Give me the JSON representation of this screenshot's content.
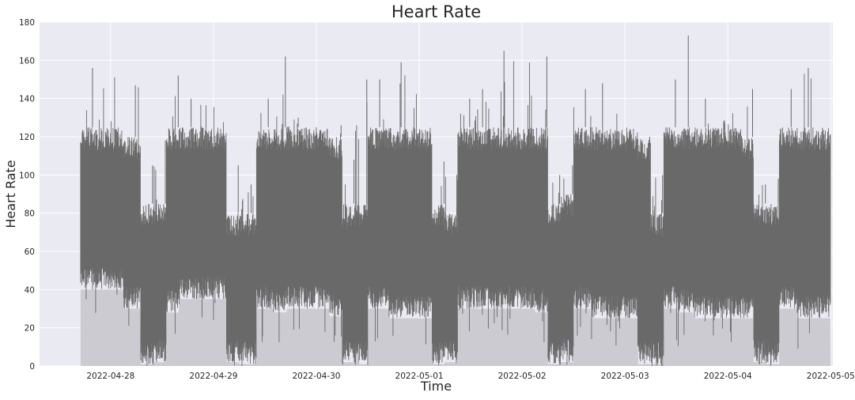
{
  "chart_data": {
    "type": "area",
    "title": "Heart Rate",
    "xlabel": "Time",
    "ylabel": "Heart Rate",
    "ylim": [
      0,
      180
    ],
    "xlim": [
      "2022-04-27 07:25",
      "2022-05-05 00:30"
    ],
    "y_ticks": [
      "0",
      "20",
      "40",
      "60",
      "80",
      "100",
      "120",
      "140",
      "160",
      "180"
    ],
    "x_ticks": [
      "2022-04-28",
      "2022-04-29",
      "2022-04-30",
      "2022-05-01",
      "2022-05-02",
      "2022-05-03",
      "2022-05-04",
      "2022-05-05"
    ],
    "grid": true,
    "legend": "none",
    "colors": {
      "plot_background": "#eaeaf2",
      "grid": "#ffffff",
      "series": "#696969",
      "fill_below": "#cbcbd1"
    },
    "series": [
      {
        "time": [
          "2022-04-27 17:00",
          "2022-04-28 03:00",
          "2022-04-28 07:00",
          "2022-04-28 10:00",
          "2022-04-28 13:00",
          "2022-04-28 16:00",
          "2022-04-29 03:00",
          "2022-04-29 06:00",
          "2022-04-29 10:00",
          "2022-04-29 14:00",
          "2022-04-29 17:00",
          "2022-04-30 03:00",
          "2022-04-30 06:00",
          "2022-04-30 09:00",
          "2022-04-30 12:00",
          "2022-04-30 17:00",
          "2022-05-01 03:00",
          "2022-05-01 06:00",
          "2022-05-01 09:00",
          "2022-05-01 12:00",
          "2022-05-01 17:00",
          "2022-05-02 03:00",
          "2022-05-02 06:00",
          "2022-05-02 09:00",
          "2022-05-02 12:00",
          "2022-05-02 16:00",
          "2022-05-03 03:00",
          "2022-05-03 06:00",
          "2022-05-03 09:00",
          "2022-05-03 12:00",
          "2022-05-03 16:00",
          "2022-05-04 03:00",
          "2022-05-04 06:00",
          "2022-05-04 09:00",
          "2022-05-04 12:00",
          "2022-05-04 16:00"
        ],
        "max": [
          156,
          147,
          105,
          118,
          152,
          140,
          105,
          95,
          140,
          162,
          130,
          126,
          108,
          150,
          150,
          159,
          107,
          100,
          140,
          145,
          165,
          162,
          100,
          105,
          145,
          148,
          115,
          100,
          150,
          173,
          140,
          145,
          95,
          98,
          145,
          156
        ],
        "typical_high": [
          125,
          120,
          85,
          85,
          125,
          125,
          80,
          80,
          125,
          125,
          125,
          120,
          85,
          85,
          125,
          125,
          85,
          80,
          125,
          125,
          125,
          125,
          85,
          90,
          125,
          125,
          120,
          80,
          125,
          125,
          125,
          120,
          85,
          85,
          125,
          125
        ],
        "typical_low": [
          40,
          30,
          1,
          2,
          28,
          35,
          2,
          1,
          30,
          28,
          30,
          26,
          2,
          1,
          30,
          25,
          1,
          2,
          30,
          30,
          30,
          28,
          1,
          2,
          30,
          25,
          1,
          1,
          30,
          28,
          25,
          25,
          2,
          1,
          30,
          25
        ],
        "min": [
          20,
          15,
          0,
          0,
          8,
          20,
          0,
          0,
          10,
          12,
          15,
          12,
          0,
          0,
          10,
          10,
          0,
          0,
          12,
          15,
          15,
          12,
          0,
          0,
          12,
          10,
          0,
          0,
          12,
          10,
          10,
          10,
          0,
          0,
          8,
          8
        ]
      }
    ]
  }
}
